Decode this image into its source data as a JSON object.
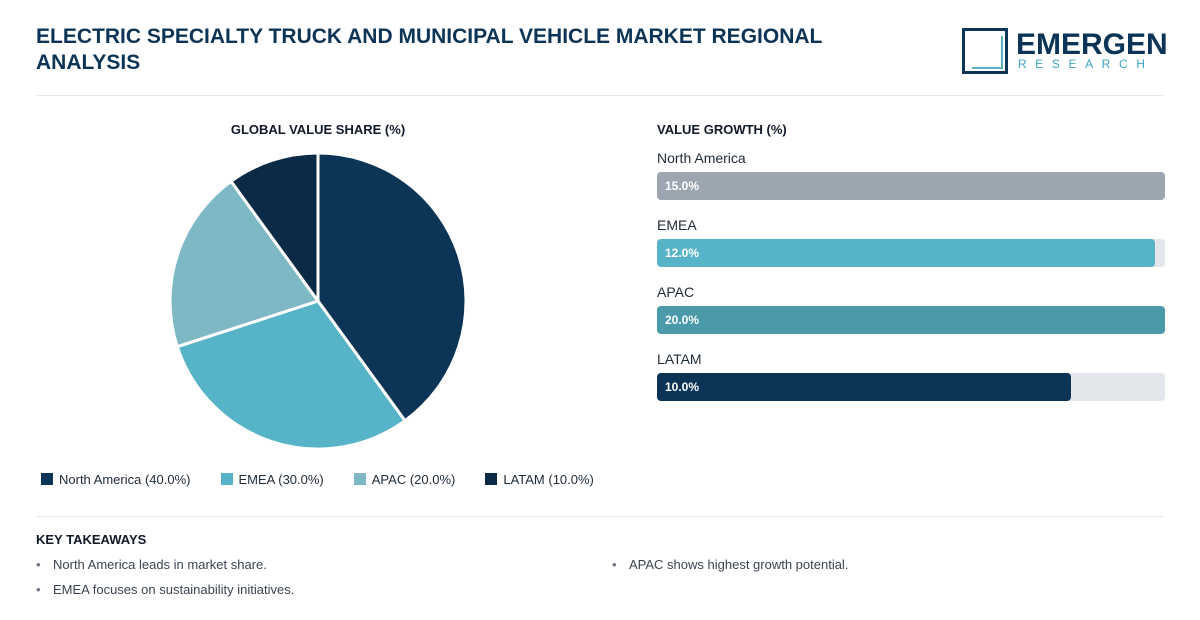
{
  "header": {
    "title": "ELECTRIC SPECIALTY TRUCK AND MUNICIPAL VEHICLE MARKET REGIONAL ANALYSIS",
    "logo_name": "EMERGEN",
    "logo_sub": "RESEARCH"
  },
  "colors": {
    "navy": "#0b3456",
    "teal": "#57b3c7",
    "light_teal": "#7fb8c5",
    "dark_navy": "#0b2a45",
    "gray_bar": "#9ca6b0",
    "deep_teal": "#4b9aaa"
  },
  "chart_data": [
    {
      "type": "pie",
      "title": "GLOBAL VALUE SHARE (%)",
      "categories": [
        "North America",
        "EMEA",
        "APAC",
        "LATAM"
      ],
      "values": [
        40.0,
        30.0,
        20.0,
        10.0
      ],
      "colors": [
        "#0b3456",
        "#57b3c7",
        "#7fb8c5",
        "#0b2a45"
      ],
      "legend_labels": [
        "North America (40.0%)",
        "EMEA (30.0%)",
        "APAC (20.0%)",
        "LATAM (10.0%)"
      ],
      "legend_position": "bottom"
    },
    {
      "type": "bar",
      "orientation": "horizontal",
      "title": "VALUE GROWTH (%)",
      "categories": [
        "North America",
        "EMEA",
        "APAC",
        "LATAM"
      ],
      "values": [
        15.0,
        12.0,
        20.0,
        10.0
      ],
      "value_labels": [
        "15.0%",
        "12.0%",
        "20.0%",
        "10.0%"
      ],
      "fill_fractions": [
        1.0,
        0.98,
        1.0,
        0.815
      ],
      "colors": [
        "#9ca6b0",
        "#57b3c7",
        "#4b9aaa",
        "#0b3456"
      ]
    }
  ],
  "takeaways": {
    "title": "KEY TAKEAWAYS",
    "left": [
      "North America leads in market share.",
      "EMEA focuses on sustainability initiatives."
    ],
    "right": [
      "APAC shows highest growth potential."
    ]
  }
}
